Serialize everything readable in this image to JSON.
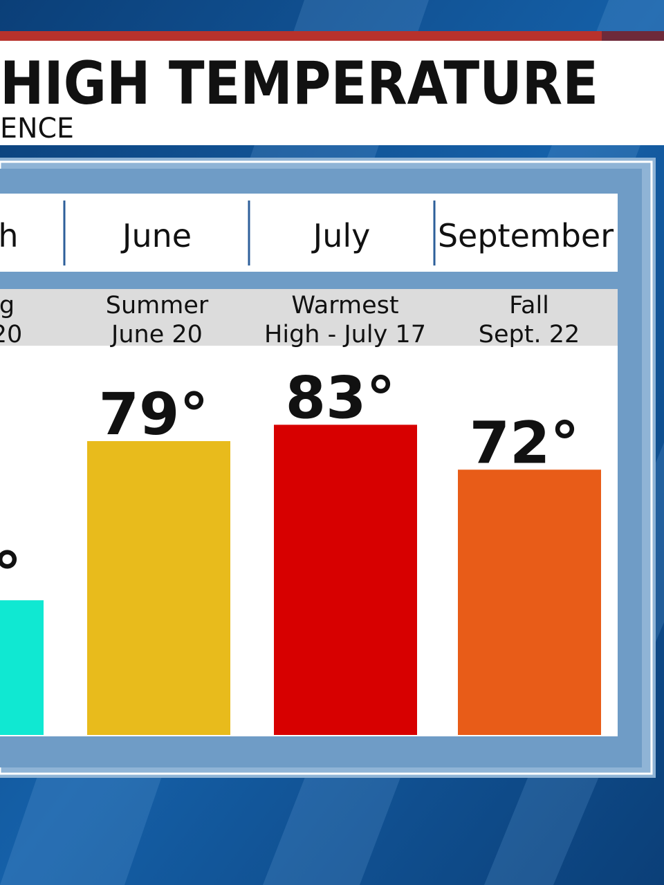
{
  "chart_data": {
    "type": "bar",
    "title": "HIGH TEMPERATURE",
    "subtitle": "ENCE",
    "months": [
      "h",
      "June",
      "July",
      "September"
    ],
    "categories": [
      [
        "g",
        "20"
      ],
      [
        "Summer",
        "June 20"
      ],
      [
        "Warmest",
        "High - July 17"
      ],
      [
        "Fall",
        "Sept. 22"
      ]
    ],
    "values": [
      40,
      79,
      83,
      72
    ],
    "value_labels": [
      "°",
      "79°",
      "83°",
      "72°"
    ],
    "colors": [
      "#10e8d2",
      "#e8bb1c",
      "#d70000",
      "#e85c18"
    ],
    "ylim": [
      7,
      100
    ]
  }
}
